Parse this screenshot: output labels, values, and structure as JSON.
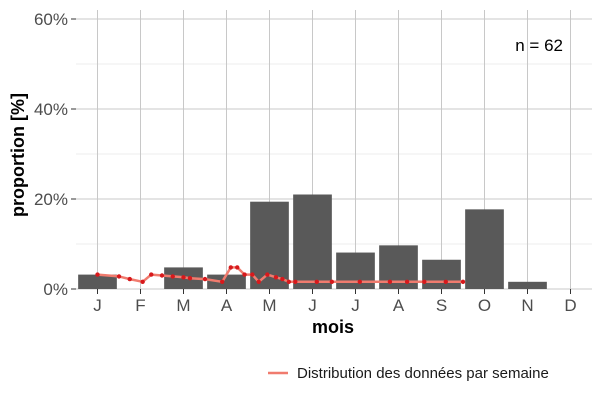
{
  "chart_data": {
    "type": "bar",
    "xlabel": "mois",
    "ylabel": "proportion [%]",
    "ylim": [
      0,
      62
    ],
    "yticks": [
      0,
      20,
      40,
      60
    ],
    "ytick_labels": [
      "0%",
      "20%",
      "40%",
      "60%"
    ],
    "categories": [
      "J",
      "F",
      "M",
      "A",
      "M",
      "J",
      "J",
      "A",
      "S",
      "O",
      "N",
      "D"
    ],
    "values": [
      3.2,
      0,
      4.8,
      3.2,
      19.4,
      21.0,
      8.1,
      9.7,
      6.5,
      17.7,
      1.6,
      0
    ],
    "bar_color": "#595959",
    "grid": true,
    "annotation": "n = 62",
    "weekly_series": {
      "name": "Distribution des données par semaine",
      "color": "#f07b6e",
      "point_color": "#d7191c",
      "x": [
        1,
        1.5,
        1.75,
        2.05,
        2.25,
        2.5,
        2.75,
        3,
        3.15,
        3.5,
        3.9,
        4.1,
        4.25,
        4.42,
        4.6,
        4.75,
        4.95,
        5.15,
        5.3,
        5.45,
        5.6,
        6.1,
        6.45,
        7.1,
        7.8,
        8.2,
        8.6,
        9.1,
        9.5
      ],
      "y": [
        3.2,
        2.8,
        2.2,
        1.6,
        3.2,
        3.0,
        2.8,
        2.6,
        2.4,
        2.2,
        1.6,
        4.8,
        4.8,
        3.2,
        3.2,
        1.6,
        3.2,
        2.6,
        2.2,
        1.6,
        1.6,
        1.6,
        1.6,
        1.6,
        1.6,
        1.6,
        1.6,
        1.6,
        1.6
      ]
    },
    "legend_position": "bottom-right"
  }
}
